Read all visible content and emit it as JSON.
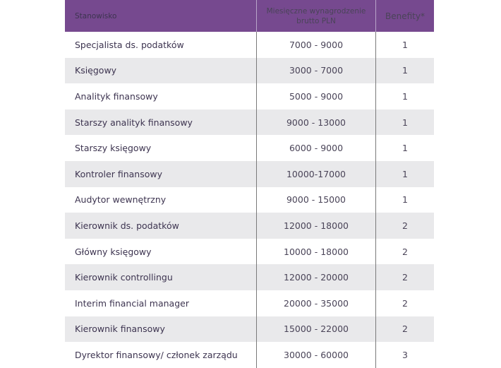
{
  "table": {
    "header": {
      "position": "Stanowisko",
      "salary": "Miesięczne wynagrodzenie brutto PLN",
      "benefits": "Benefity*"
    },
    "header_color": "#76498f",
    "alt_row_color": "#e9e9eb",
    "rows": [
      {
        "position": "Specjalista ds. podatków",
        "salary": "7000 - 9000",
        "benefits": "1"
      },
      {
        "position": "Księgowy",
        "salary": "3000 - 7000",
        "benefits": "1"
      },
      {
        "position": "Analityk finansowy",
        "salary": "5000 - 9000",
        "benefits": "1"
      },
      {
        "position": "Starszy analityk finansowy",
        "salary": "9000 - 13000",
        "benefits": "1"
      },
      {
        "position": "Starszy księgowy",
        "salary": "6000 - 9000",
        "benefits": "1"
      },
      {
        "position": "Kontroler finansowy",
        "salary": "10000-17000",
        "benefits": "1"
      },
      {
        "position": "Audytor wewnętrzny",
        "salary": "9000 - 15000",
        "benefits": "1"
      },
      {
        "position": "Kierownik ds. podatków",
        "salary": "12000 - 18000",
        "benefits": "2"
      },
      {
        "position": "Główny księgowy",
        "salary": "10000 - 18000",
        "benefits": "2"
      },
      {
        "position": "Kierownik controllingu",
        "salary": "12000 - 20000",
        "benefits": "2"
      },
      {
        "position": "Interim financial manager",
        "salary": "20000 - 35000",
        "benefits": "2"
      },
      {
        "position": "Kierownik finansowy",
        "salary": "15000 - 22000",
        "benefits": "2"
      },
      {
        "position": "Dyrektor finansowy/ członek zarządu",
        "salary": "30000 - 60000",
        "benefits": "3"
      }
    ]
  }
}
